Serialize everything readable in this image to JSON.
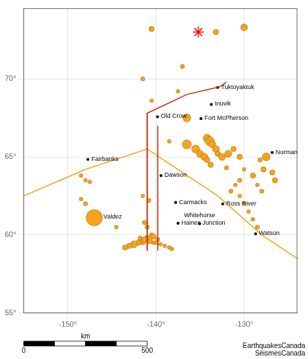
{
  "chart_data": {
    "type": "scatter",
    "xlim": [
      -155,
      -124
    ],
    "ylim": [
      55,
      74.5
    ],
    "xticks": [
      {
        "value": -150,
        "label": "-150°"
      },
      {
        "value": -140,
        "label": "-140°"
      },
      {
        "value": -130,
        "label": "-130°"
      }
    ],
    "yticks": [
      {
        "value": 55,
        "label": "55°"
      },
      {
        "value": 60,
        "label": "60°"
      },
      {
        "value": 65,
        "label": "65°"
      },
      {
        "value": 70,
        "label": "70°"
      }
    ],
    "grid": true,
    "series": [
      {
        "type": "line",
        "color": "#cc2200",
        "x": [
          -141.0,
          -141.0
        ],
        "values": [
          59.0,
          67.8
        ]
      },
      {
        "type": "line",
        "color": "#cc2200",
        "x": [
          -139.8,
          -139.8
        ],
        "values": [
          59.0,
          67.0
        ]
      },
      {
        "type": "line",
        "color": "#cc2200",
        "x": [
          -141.0,
          -141.0,
          -136.5,
          -132.7
        ],
        "values": [
          59.0,
          67.8,
          69.0,
          69.5
        ]
      },
      {
        "type": "line",
        "color": "#cc2200",
        "x": [
          -132.7,
          -132.0
        ],
        "values": [
          69.5,
          69.8
        ]
      },
      {
        "type": "line",
        "color": "#f5a31a",
        "x": [
          -155.0,
          -148.0,
          -141.0,
          -133.0,
          -128.0,
          -124.0
        ],
        "values": [
          62.5,
          64.2,
          65.5,
          62.5,
          60.0,
          58.5
        ]
      },
      {
        "type": "scatter",
        "marker": "circle",
        "color": "#f5a31a",
        "x": [
          -140.5,
          -130.0,
          -133.2,
          -137.0,
          -141.5,
          -137.5,
          -140.5,
          -136.5,
          -138.5,
          -136.5,
          -135.5,
          -135.0,
          -134.5,
          -134.2,
          -133.8,
          -134.2,
          -133.9,
          -133.6,
          -133.2,
          -133.0,
          -132.5,
          -131.8,
          -131.2,
          -130.5,
          -148.5,
          -148.0,
          -147.5,
          -148.5,
          -148.0,
          -141.5,
          -140.8,
          -141.3,
          -141.0,
          -140.5,
          -141.0,
          -141.5,
          -142.0,
          -142.5,
          -143.0,
          -143.5,
          -140.3,
          -140.0,
          -139.5,
          -139.0,
          -138.5,
          -138.2,
          -141.8,
          -141.3,
          -140.7,
          -140.3,
          -139.8,
          -147.0,
          -131.5,
          -130.5,
          -130.0,
          -129.5,
          -129.0,
          -128.5,
          -127.5,
          -130.0,
          -130.5,
          -131.0,
          -132.0,
          -144.5,
          -128.0,
          -128.5,
          -129.0,
          -127.8,
          -128.2,
          -126.5,
          -126.8
        ],
        "values": [
          73.2,
          73.3,
          73.0,
          70.8,
          70.0,
          69.2,
          68.6,
          67.5,
          66.0,
          65.8,
          65.5,
          65.2,
          65.0,
          64.8,
          64.5,
          66.2,
          66.0,
          65.8,
          65.5,
          65.2,
          65.0,
          65.2,
          65.5,
          65.0,
          63.8,
          63.5,
          63.4,
          62.3,
          62.0,
          62.5,
          62.2,
          60.8,
          60.5,
          60.0,
          59.8,
          59.6,
          59.5,
          59.4,
          59.3,
          59.2,
          59.5,
          59.5,
          59.4,
          59.3,
          59.2,
          59.1,
          59.8,
          59.7,
          59.6,
          59.9,
          59.7,
          61.1,
          62.8,
          62.5,
          62.0,
          61.5,
          61.0,
          60.5,
          65.0,
          64.2,
          63.5,
          63.2,
          64.3,
          60.5,
          62.8,
          63.2,
          63.8,
          64.2,
          64.8,
          63.5,
          64.0
        ],
        "mag": [
          5.5,
          5.8,
          5.5,
          5.3,
          5.3,
          5.2,
          5.2,
          6.0,
          5.2,
          6.2,
          6.0,
          5.8,
          5.8,
          5.5,
          5.5,
          6.0,
          6.2,
          5.8,
          5.8,
          5.5,
          5.8,
          5.8,
          5.5,
          5.5,
          5.2,
          5.2,
          5.2,
          5.2,
          5.3,
          5.2,
          5.3,
          5.3,
          5.3,
          5.3,
          5.5,
          5.8,
          5.5,
          5.8,
          5.5,
          5.5,
          5.2,
          5.2,
          5.2,
          5.2,
          5.2,
          5.2,
          5.3,
          5.5,
          5.5,
          5.5,
          5.3,
          7.5,
          5.3,
          5.2,
          5.2,
          5.2,
          5.2,
          5.3,
          6.0,
          5.2,
          5.3,
          5.2,
          5.3,
          5.2,
          5.3,
          5.2,
          5.5,
          5.5,
          5.3,
          5.5,
          5.5
        ]
      },
      {
        "type": "scatter",
        "marker": "star",
        "color": "red",
        "x": [
          -135.2
        ],
        "values": [
          73.0
        ]
      },
      {
        "type": "scatter",
        "marker": "square",
        "color": "#000000",
        "x": [
          -133.0,
          -133.72,
          -139.83,
          -134.9,
          -147.72,
          -139.43,
          -137.77,
          -132.43,
          -137.5,
          -135.05,
          -146.35,
          -128.7,
          -126.83
        ],
        "values": [
          69.45,
          68.36,
          67.57,
          67.45,
          64.84,
          63.8,
          62.08,
          61.99,
          60.75,
          60.72,
          61.13,
          60.07,
          65.28
        ],
        "text": [
          "Tuktoyaktuk",
          "Inuvik",
          "Old Crow",
          "Fort McPherson",
          "Fairbanks",
          "Dawson",
          "Carmacks",
          "Ross River",
          "Haines Junction",
          "Whitehorse",
          "Valdez",
          "Watson",
          "Norman"
        ]
      }
    ],
    "scale_bar": {
      "label": "km",
      "ticks": [
        0,
        500
      ]
    },
    "annotations": [
      "EarthquakesCanada\nSéismesCanada"
    ]
  }
}
